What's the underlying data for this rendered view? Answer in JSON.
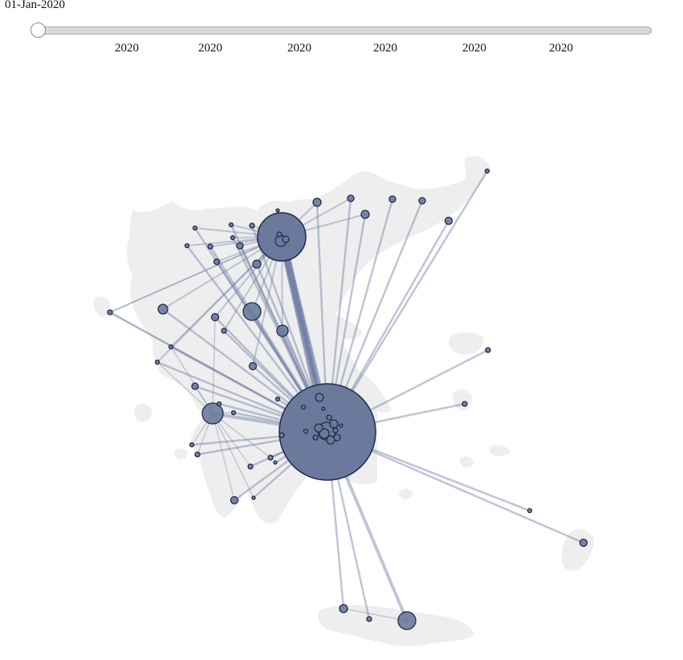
{
  "timeline": {
    "current_date": "01-Jan-2020",
    "tick_labels": [
      "2020",
      "2020",
      "2020",
      "2020",
      "2020",
      "2020"
    ],
    "position": 0
  },
  "colors": {
    "land": "#eeeeee",
    "node_fill": "#6b7a9c",
    "node_stroke": "#1e2a4a",
    "edge": "#6e7fa3"
  }
}
